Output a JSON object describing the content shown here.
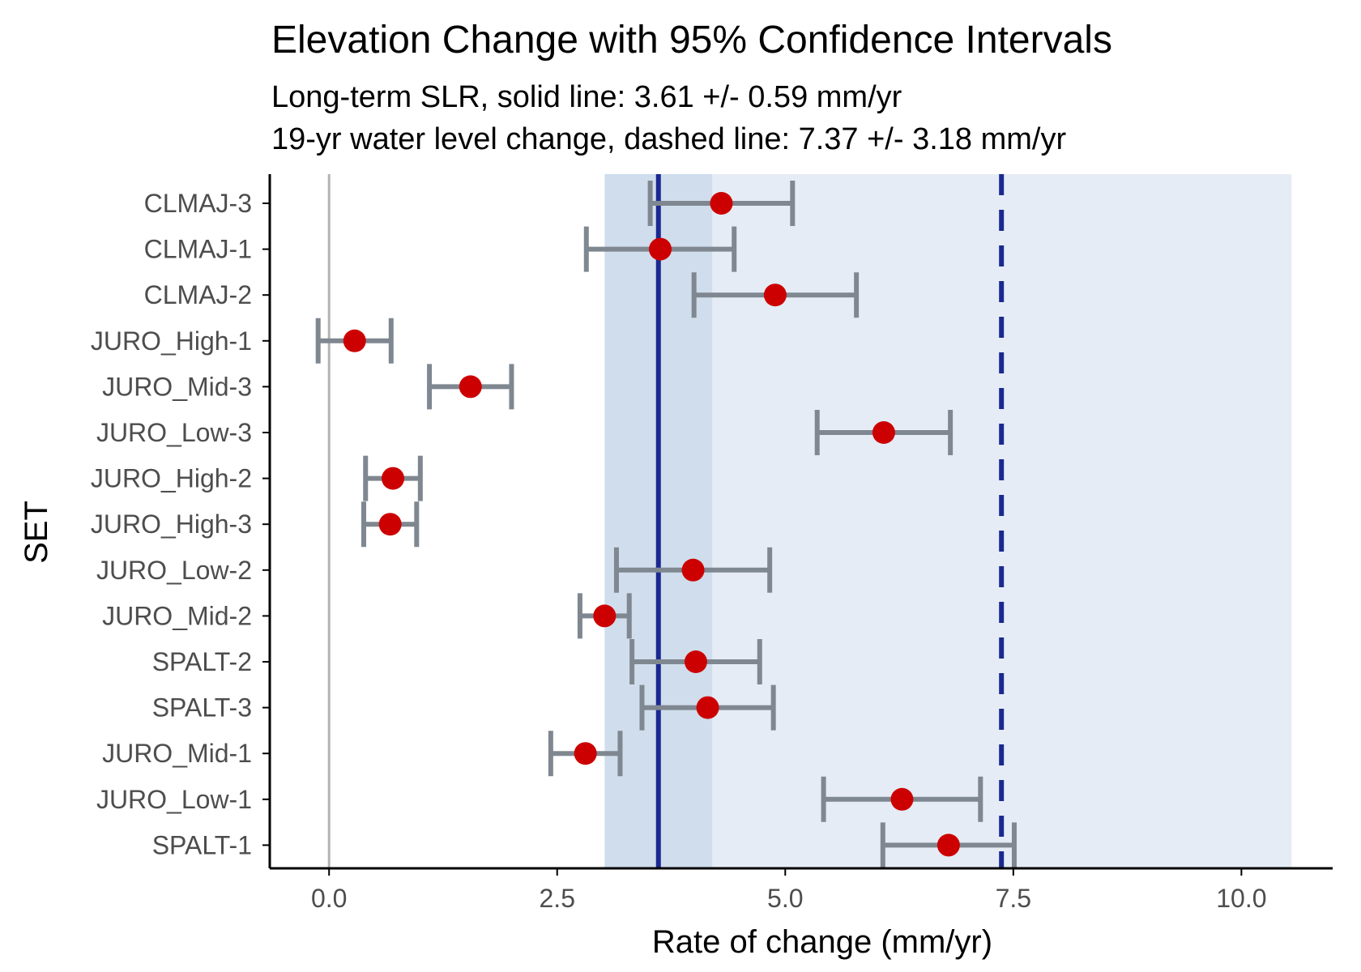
{
  "chart_data": {
    "type": "scatter",
    "title": "Elevation Change with 95% Confidence Intervals",
    "subtitle_lines": [
      "Long-term SLR, solid line: 3.61 +/- 0.59 mm/yr",
      "19-yr water level change, dashed line: 7.37 +/- 3.18 mm/yr"
    ],
    "xlabel": "Rate of change (mm/yr)",
    "ylabel": "SET",
    "xlim": [
      -0.65,
      11.0
    ],
    "x_ticks": [
      {
        "value": 0,
        "label": "0.0"
      },
      {
        "value": 2.5,
        "label": "2.5"
      },
      {
        "value": 5,
        "label": "5.0"
      },
      {
        "value": 7.5,
        "label": "7.5"
      },
      {
        "value": 10,
        "label": "10.0"
      }
    ],
    "grid": false,
    "zero_line": 0,
    "reference_lines": {
      "solid": {
        "value": 3.61,
        "ci_low": 3.02,
        "ci_high": 4.2
      },
      "dashed": {
        "value": 7.37,
        "ci_low": 4.19,
        "ci_high": 10.55
      }
    },
    "categories": [
      "CLMAJ-3",
      "CLMAJ-1",
      "CLMAJ-2",
      "JURO_High-1",
      "JURO_Mid-3",
      "JURO_Low-3",
      "JURO_High-2",
      "JURO_High-3",
      "JURO_Low-2",
      "JURO_Mid-2",
      "SPALT-2",
      "SPALT-3",
      "JURO_Mid-1",
      "JURO_Low-1",
      "SPALT-1"
    ],
    "points": [
      {
        "set": "CLMAJ-3",
        "rate": 4.3,
        "ci_low": 3.52,
        "ci_high": 5.08
      },
      {
        "set": "CLMAJ-1",
        "rate": 3.63,
        "ci_low": 2.82,
        "ci_high": 4.44
      },
      {
        "set": "CLMAJ-2",
        "rate": 4.89,
        "ci_low": 4.0,
        "ci_high": 5.78
      },
      {
        "set": "JURO_High-1",
        "rate": 0.28,
        "ci_low": -0.12,
        "ci_high": 0.68
      },
      {
        "set": "JURO_Mid-3",
        "rate": 1.55,
        "ci_low": 1.1,
        "ci_high": 2.0
      },
      {
        "set": "JURO_Low-3",
        "rate": 6.08,
        "ci_low": 5.35,
        "ci_high": 6.81
      },
      {
        "set": "JURO_High-2",
        "rate": 0.7,
        "ci_low": 0.4,
        "ci_high": 1.0
      },
      {
        "set": "JURO_High-3",
        "rate": 0.67,
        "ci_low": 0.38,
        "ci_high": 0.96
      },
      {
        "set": "JURO_Low-2",
        "rate": 3.99,
        "ci_low": 3.15,
        "ci_high": 4.83
      },
      {
        "set": "JURO_Mid-2",
        "rate": 3.02,
        "ci_low": 2.75,
        "ci_high": 3.29
      },
      {
        "set": "SPALT-2",
        "rate": 4.02,
        "ci_low": 3.32,
        "ci_high": 4.72
      },
      {
        "set": "SPALT-3",
        "rate": 4.15,
        "ci_low": 3.43,
        "ci_high": 4.87
      },
      {
        "set": "JURO_Mid-1",
        "rate": 2.81,
        "ci_low": 2.43,
        "ci_high": 3.19
      },
      {
        "set": "JURO_Low-1",
        "rate": 6.28,
        "ci_low": 5.42,
        "ci_high": 7.14
      },
      {
        "set": "SPALT-1",
        "rate": 6.79,
        "ci_low": 6.07,
        "ci_high": 7.51
      }
    ]
  },
  "colors": {
    "point": "#cc0000",
    "errorbar": "#7f8790",
    "reference_line": "#1a2890",
    "band_inner": "#d0ddec",
    "band_outer": "#e5ecf5",
    "zero_line": "#b3b3b3",
    "axis": "#000000"
  }
}
